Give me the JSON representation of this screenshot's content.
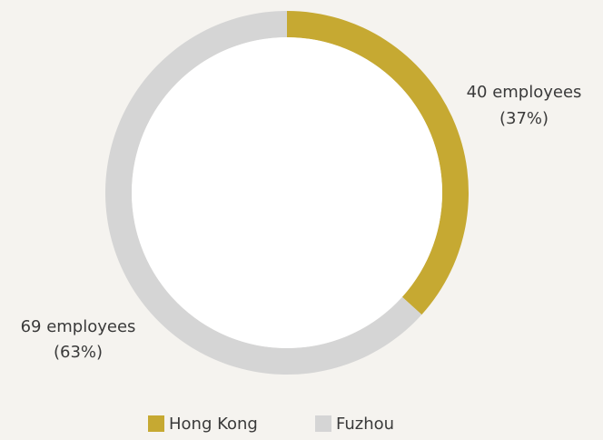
{
  "chart_data": {
    "type": "donut",
    "categories": [
      "Hong Kong",
      "Fuzhou"
    ],
    "values": [
      40,
      69
    ],
    "value_labels": [
      "40 employees",
      "69 employees"
    ],
    "percent_labels": [
      "(37%)",
      "(63%)"
    ],
    "colors": [
      "#c6a932",
      "#d5d5d5"
    ],
    "legend": "bottom"
  }
}
